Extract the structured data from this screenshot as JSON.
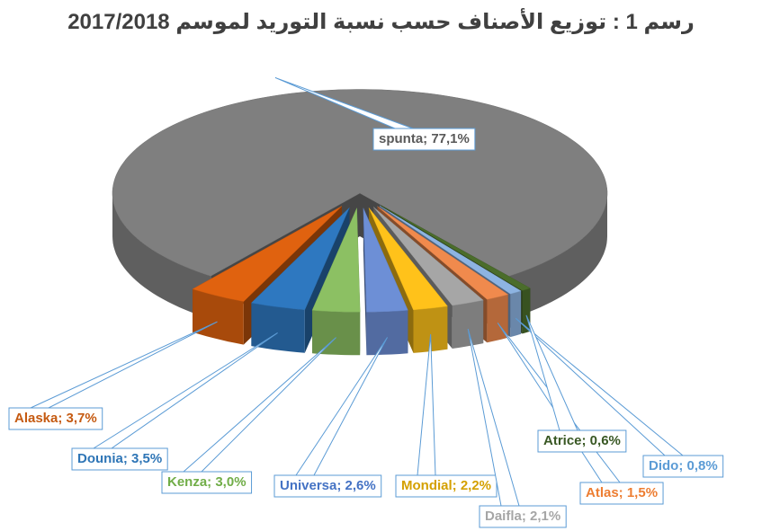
{
  "chart_data": {
    "type": "pie3d",
    "title": "رسم 1 : توزيع الأصناف حسب نسبة التوريد لموسم 2017/2018",
    "categories": [
      "spunta",
      "Alaska",
      "Dounia",
      "Kenza",
      "Universa",
      "Mondial",
      "Daifla",
      "Atlas",
      "Dido",
      "Atrice"
    ],
    "values": [
      77.1,
      3.7,
      3.5,
      3.0,
      2.6,
      2.2,
      2.1,
      1.5,
      0.8,
      0.6
    ],
    "value_labels": [
      "spunta; 77,1%",
      "Alaska; 3,7%",
      "Dounia; 3,5%",
      "Kenza; 3,0%",
      "Universa; 2,6%",
      "Mondial; 2,2%",
      "Daifla; 2,1%",
      "Atlas; 1,5%",
      "Dido; 0,8%",
      "Atrice; 0,6%"
    ],
    "colors": [
      "#7f7f7f",
      "#e0620f",
      "#2e78c0",
      "#8cc063",
      "#6d8fd6",
      "#ffc21a",
      "#a6a6a6",
      "#f08a4d",
      "#8db4e2",
      "#4b6d2b"
    ],
    "label_colors": [
      "#595959",
      "#c55a11",
      "#2e75b6",
      "#70ad47",
      "#4472c4",
      "#d4a000",
      "#a6a6a6",
      "#ed7d31",
      "#5b9bd5",
      "#385723"
    ]
  }
}
